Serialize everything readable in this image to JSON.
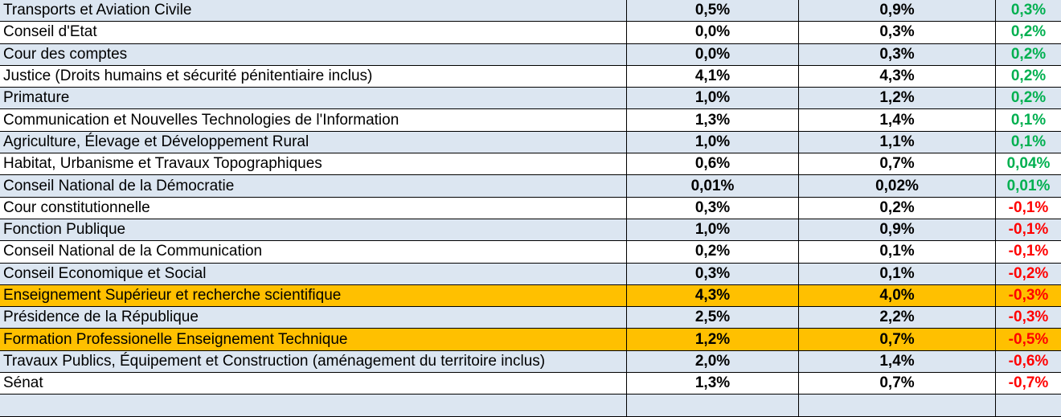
{
  "table": {
    "rows": [
      {
        "name": "Transports et Aviation Civile",
        "v1": "0,5%",
        "v2": "0,9%",
        "diff": "0,3%",
        "sign": "pos",
        "band": "light"
      },
      {
        "name": "Conseil d'Etat",
        "v1": "0,0%",
        "v2": "0,3%",
        "diff": "0,2%",
        "sign": "pos",
        "band": "white"
      },
      {
        "name": "Cour des comptes",
        "v1": "0,0%",
        "v2": "0,3%",
        "diff": "0,2%",
        "sign": "pos",
        "band": "light"
      },
      {
        "name": "Justice (Droits humains et sécurité pénitentiaire inclus)",
        "v1": "4,1%",
        "v2": "4,3%",
        "diff": "0,2%",
        "sign": "pos",
        "band": "white"
      },
      {
        "name": "Primature",
        "v1": "1,0%",
        "v2": "1,2%",
        "diff": "0,2%",
        "sign": "pos",
        "band": "light"
      },
      {
        "name": "Communication et Nouvelles Technologies de l'Information",
        "v1": "1,3%",
        "v2": "1,4%",
        "diff": "0,1%",
        "sign": "pos",
        "band": "white"
      },
      {
        "name": "Agriculture, Élevage et Développement Rural",
        "v1": "1,0%",
        "v2": "1,1%",
        "diff": "0,1%",
        "sign": "pos",
        "band": "light"
      },
      {
        "name": "Habitat, Urbanisme et Travaux Topographiques",
        "v1": "0,6%",
        "v2": "0,7%",
        "diff": "0,04%",
        "sign": "pos",
        "band": "white"
      },
      {
        "name": "Conseil National de la Démocratie",
        "v1": "0,01%",
        "v2": "0,02%",
        "diff": "0,01%",
        "sign": "pos",
        "band": "light"
      },
      {
        "name": "Cour constitutionnelle",
        "v1": "0,3%",
        "v2": "0,2%",
        "diff": "-0,1%",
        "sign": "neg",
        "band": "white"
      },
      {
        "name": "Fonction Publique",
        "v1": "1,0%",
        "v2": "0,9%",
        "diff": "-0,1%",
        "sign": "neg",
        "band": "light"
      },
      {
        "name": "Conseil National de la Communication",
        "v1": "0,2%",
        "v2": "0,1%",
        "diff": "-0,1%",
        "sign": "neg",
        "band": "white"
      },
      {
        "name": "Conseil Economique et Social",
        "v1": "0,3%",
        "v2": "0,1%",
        "diff": "-0,2%",
        "sign": "neg",
        "band": "light"
      },
      {
        "name": "Enseignement Supérieur et recherche scientifique",
        "v1": "4,3%",
        "v2": "4,0%",
        "diff": "-0,3%",
        "sign": "neg",
        "band": "hl"
      },
      {
        "name": "Présidence de la République",
        "v1": "2,5%",
        "v2": "2,2%",
        "diff": "-0,3%",
        "sign": "neg",
        "band": "light"
      },
      {
        "name": "Formation Professionelle Enseignement Technique",
        "v1": "1,2%",
        "v2": "0,7%",
        "diff": "-0,5%",
        "sign": "neg",
        "band": "hl"
      },
      {
        "name": "Travaux Publics, Équipement et Construction (aménagement du territoire inclus)",
        "v1": "2,0%",
        "v2": "1,4%",
        "diff": "-0,6%",
        "sign": "neg",
        "band": "light"
      },
      {
        "name": "Sénat",
        "v1": "1,3%",
        "v2": "0,7%",
        "diff": "-0,7%",
        "sign": "neg",
        "band": "white"
      },
      {
        "name": "",
        "v1": "",
        "v2": "",
        "diff": "",
        "sign": "neg",
        "band": "light"
      }
    ]
  },
  "colors": {
    "positive": "#00b050",
    "negative": "#ff0000",
    "band_light": "#dce6f1",
    "highlight": "#ffc000"
  }
}
